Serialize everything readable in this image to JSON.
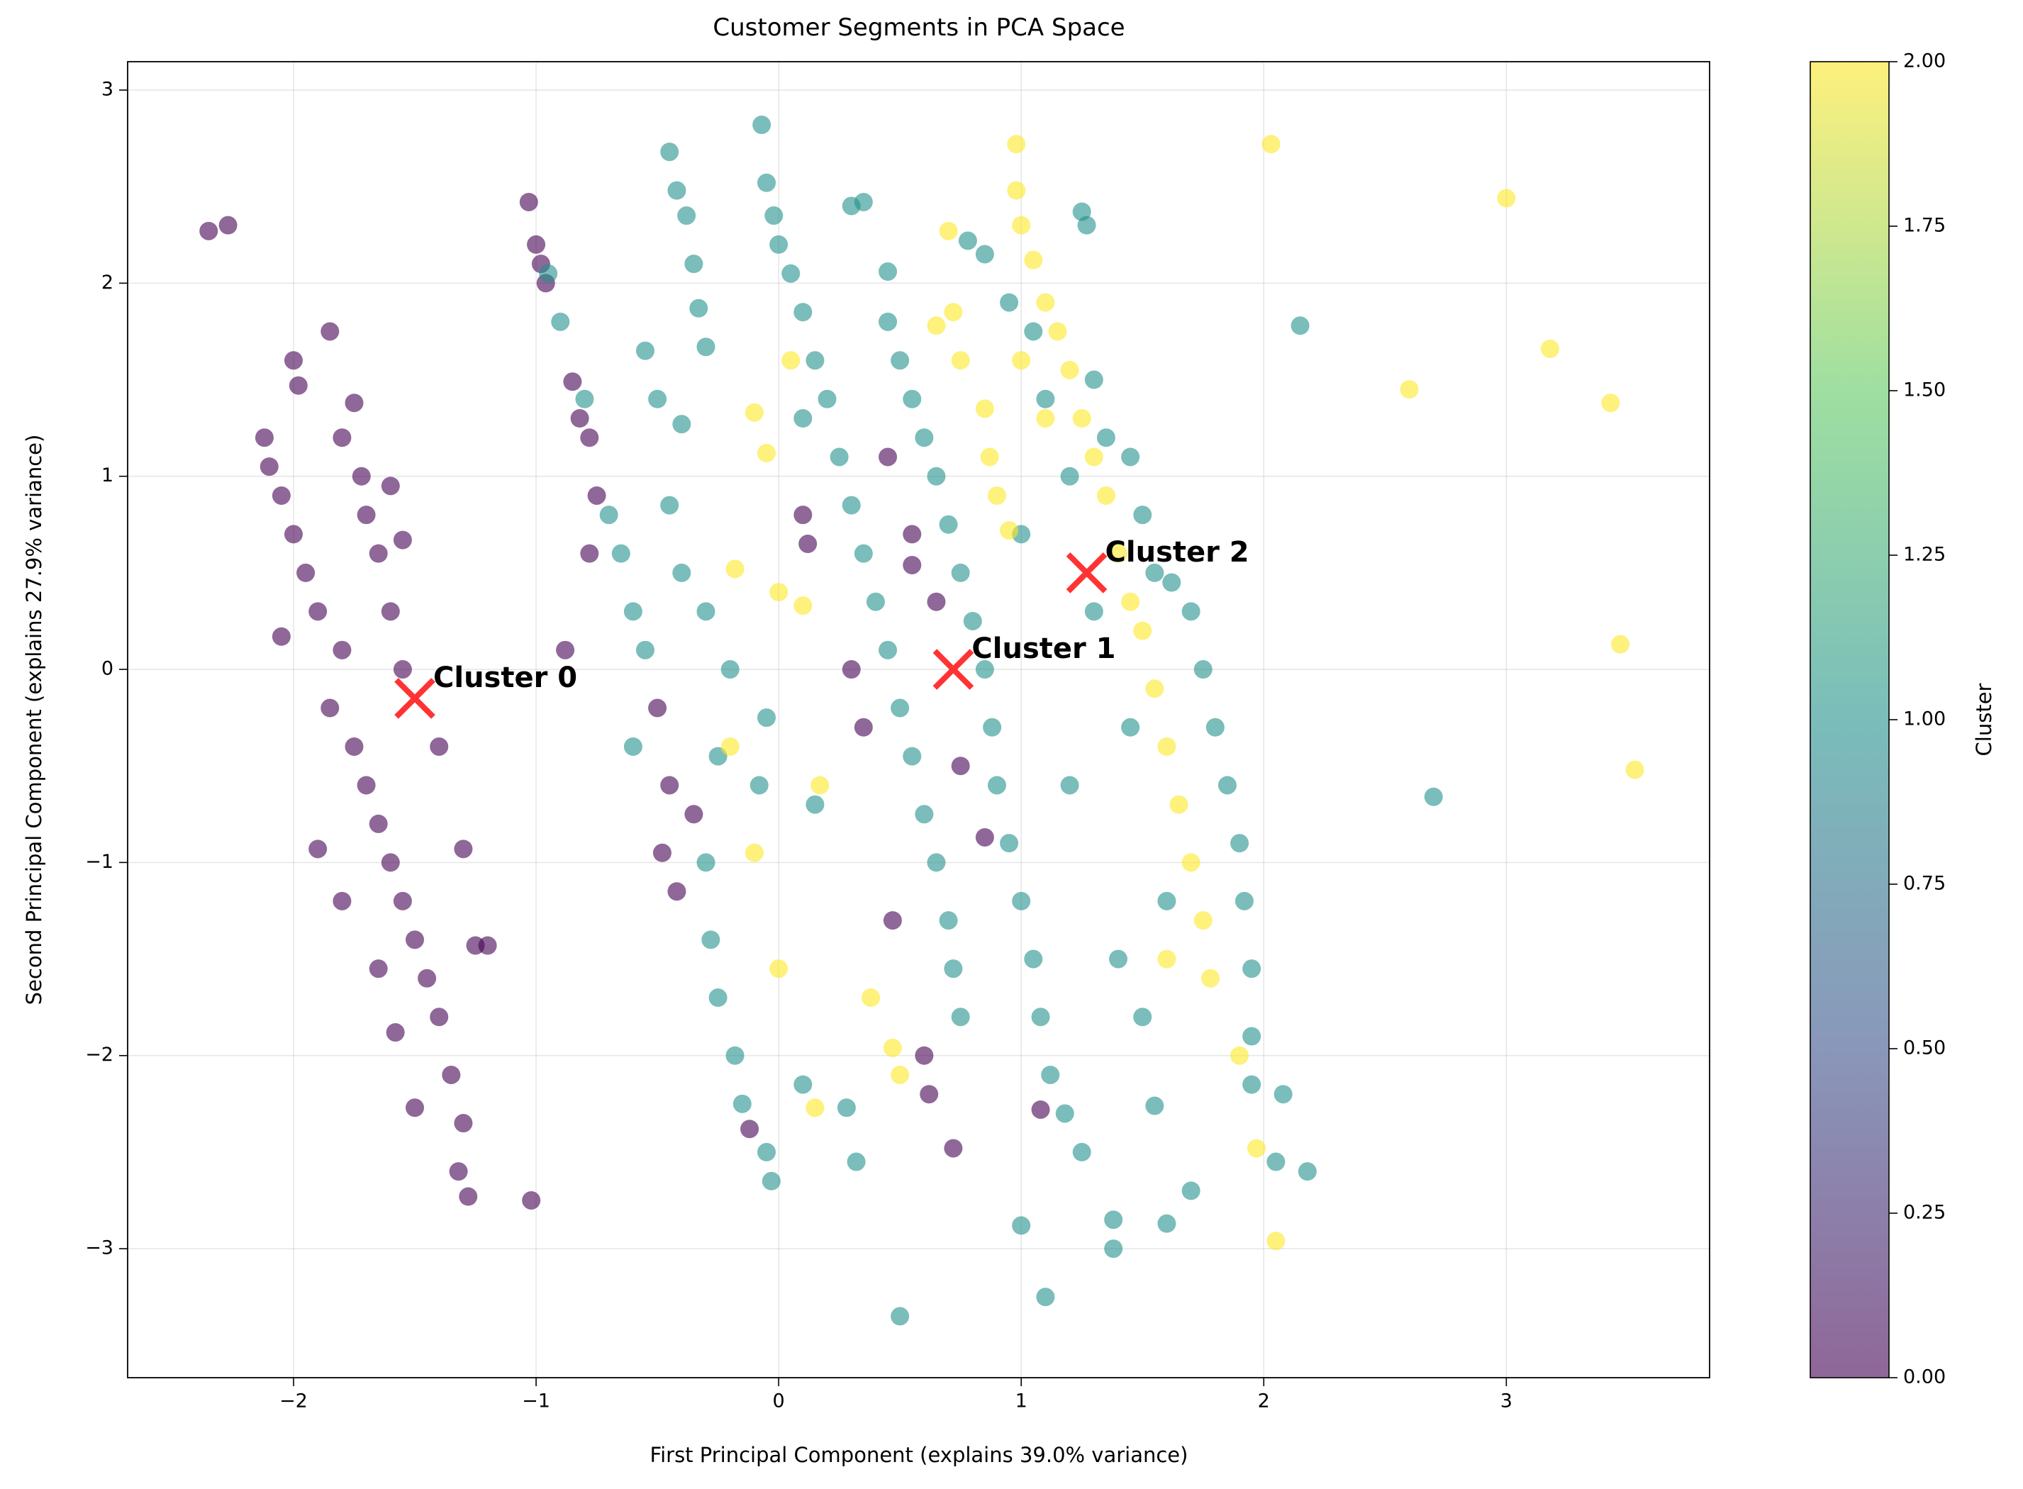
{
  "chart_data": {
    "type": "scatter",
    "title": "Customer Segments in PCA Space",
    "x_label": "First Principal Component (explains 39.0% variance)",
    "y_label": "Second Principal Component (explains 27.9% variance)",
    "xlim": [
      -2.684,
      3.838
    ],
    "ylim": [
      -3.668,
      3.147
    ],
    "xticks": [
      {
        "value": -2,
        "label": "−2"
      },
      {
        "value": -1,
        "label": "−1"
      },
      0,
      1,
      2,
      3
    ],
    "yticks": [
      {
        "value": -3,
        "label": "−3"
      },
      {
        "value": -2,
        "label": "−2"
      },
      {
        "value": -1,
        "label": "−1"
      },
      0,
      1,
      2,
      3
    ],
    "grid": true,
    "alpha": 0.6,
    "series": [
      {
        "color": "#440154",
        "x": [
          -2.35,
          -2.27,
          -2.12,
          -2.1,
          -2.05,
          -2.0,
          -1.98,
          -2.0,
          -1.95,
          -1.9,
          -2.05,
          -1.85,
          -1.8,
          -1.75,
          -1.72,
          -1.7,
          -1.65,
          -1.6,
          -1.55,
          -1.8,
          -1.85,
          -1.75,
          -1.7,
          -1.65,
          -1.6,
          -1.55,
          -1.5,
          -1.45,
          -1.4,
          -1.35,
          -1.3,
          -1.32,
          -1.28,
          -1.5,
          -1.25,
          -1.2,
          -1.3,
          -1.4,
          -1.9,
          -1.8,
          -1.58,
          -1.65,
          -1.55,
          -1.6,
          -1.02,
          -1.03,
          -1.0,
          -0.98,
          -0.96,
          -0.85,
          -0.82,
          -0.78,
          -0.75,
          -0.78,
          -0.88,
          -0.5,
          -0.48,
          -0.45,
          -0.35,
          -0.42,
          0.1,
          0.12,
          0.3,
          0.35,
          0.45,
          0.47,
          0.6,
          0.62,
          0.72,
          0.65,
          0.55,
          0.75,
          0.85,
          1.08,
          0.55,
          -0.12
        ],
        "y": [
          2.27,
          2.3,
          1.2,
          1.05,
          0.9,
          1.6,
          1.47,
          0.7,
          0.5,
          0.3,
          0.17,
          1.75,
          1.2,
          1.38,
          1.0,
          0.8,
          0.6,
          0.3,
          0.0,
          0.1,
          -0.2,
          -0.4,
          -0.6,
          -0.8,
          -1.0,
          -1.2,
          -1.4,
          -1.6,
          -1.8,
          -2.1,
          -2.35,
          -2.6,
          -2.73,
          -2.27,
          -1.43,
          -1.43,
          -0.93,
          -0.4,
          -0.93,
          -1.2,
          -1.88,
          -1.55,
          0.67,
          0.95,
          -2.75,
          2.42,
          2.2,
          2.1,
          2.0,
          1.49,
          1.3,
          1.2,
          0.9,
          0.6,
          0.1,
          -0.2,
          -0.95,
          -0.6,
          -0.75,
          -1.15,
          0.8,
          0.65,
          0.0,
          -0.3,
          1.1,
          -1.3,
          -2.0,
          -2.2,
          -2.48,
          0.35,
          0.54,
          -0.5,
          -0.87,
          -2.28,
          0.7,
          -2.38
        ]
      },
      {
        "color": "#21918c",
        "x": [
          -0.95,
          -0.9,
          -0.8,
          -0.7,
          -0.65,
          -0.6,
          -0.55,
          -0.6,
          -0.45,
          -0.42,
          -0.38,
          -0.35,
          -0.33,
          -0.3,
          -0.55,
          -0.5,
          -0.4,
          -0.45,
          -0.4,
          -0.3,
          -0.2,
          -0.25,
          -0.3,
          -0.28,
          -0.25,
          -0.18,
          -0.15,
          -0.05,
          -0.03,
          -0.07,
          -0.05,
          -0.02,
          0.0,
          0.05,
          0.1,
          0.15,
          0.2,
          0.25,
          0.3,
          0.35,
          0.4,
          0.45,
          0.5,
          0.55,
          0.6,
          0.65,
          0.7,
          0.72,
          0.75,
          0.3,
          0.35,
          0.45,
          0.45,
          0.5,
          0.55,
          0.6,
          0.65,
          0.7,
          0.75,
          0.8,
          0.85,
          0.88,
          0.9,
          0.95,
          1.0,
          1.05,
          1.08,
          1.12,
          1.18,
          1.25,
          1.0,
          1.1,
          0.5,
          1.38,
          1.38,
          1.6,
          1.7,
          1.55,
          0.1,
          0.28,
          0.32,
          0.78,
          0.85,
          0.95,
          1.05,
          1.1,
          1.2,
          1.25,
          1.27,
          1.3,
          1.35,
          1.45,
          1.5,
          1.55,
          1.62,
          1.7,
          1.75,
          1.8,
          1.85,
          1.9,
          1.92,
          1.95,
          1.95,
          1.95,
          2.05,
          2.08,
          2.18,
          2.15,
          2.7,
          1.4,
          1.5,
          1.6,
          1.0,
          0.1,
          -0.05,
          -0.08,
          0.15,
          1.3,
          1.45,
          1.2
        ],
        "y": [
          2.05,
          1.8,
          1.4,
          0.8,
          0.6,
          0.3,
          0.1,
          -0.4,
          2.68,
          2.48,
          2.35,
          2.1,
          1.87,
          1.67,
          1.65,
          1.4,
          1.27,
          0.85,
          0.5,
          0.3,
          0.0,
          -0.45,
          -1.0,
          -1.4,
          -1.7,
          -2.0,
          -2.25,
          -2.5,
          -2.65,
          2.82,
          2.52,
          2.35,
          2.2,
          2.05,
          1.85,
          1.6,
          1.4,
          1.1,
          0.85,
          0.6,
          0.35,
          0.1,
          -0.2,
          -0.45,
          -0.75,
          -1.0,
          -1.3,
          -1.55,
          -1.8,
          2.4,
          2.42,
          2.06,
          1.8,
          1.6,
          1.4,
          1.2,
          1.0,
          0.75,
          0.5,
          0.25,
          0.0,
          -0.3,
          -0.6,
          -0.9,
          -1.2,
          -1.5,
          -1.8,
          -2.1,
          -2.3,
          -2.5,
          -2.88,
          -3.25,
          -3.35,
          -2.85,
          -3.0,
          -2.87,
          -2.7,
          -2.26,
          -2.15,
          -2.27,
          -2.55,
          2.22,
          2.15,
          1.9,
          1.75,
          1.4,
          1.0,
          2.37,
          2.3,
          1.5,
          1.2,
          1.1,
          0.8,
          0.5,
          0.45,
          0.3,
          0.0,
          -0.3,
          -0.6,
          -0.9,
          -1.2,
          -1.55,
          -1.9,
          -2.15,
          -2.55,
          -2.2,
          -2.6,
          1.78,
          -0.66,
          -1.5,
          -1.8,
          -1.2,
          0.7,
          1.3,
          -0.25,
          -0.6,
          -0.7,
          0.3,
          -0.3,
          -0.6
        ]
      },
      {
        "color": "#fde725",
        "x": [
          0.98,
          0.98,
          1.0,
          1.05,
          1.1,
          1.15,
          1.2,
          1.25,
          1.3,
          1.35,
          1.4,
          1.45,
          1.5,
          1.55,
          1.6,
          1.65,
          1.7,
          1.75,
          1.78,
          1.9,
          0.7,
          0.72,
          0.65,
          0.75,
          0.85,
          0.87,
          0.9,
          0.95,
          1.0,
          1.1,
          2.03,
          3.0,
          3.18,
          2.6,
          3.43,
          3.47,
          3.53,
          1.97,
          2.05,
          0.38,
          0.47,
          0.5,
          0.15,
          0.0,
          0.05,
          -0.1,
          -0.05,
          0.1,
          0.17,
          -0.1,
          0.0,
          -0.2,
          -0.18,
          1.6
        ],
        "y": [
          2.72,
          2.48,
          2.3,
          2.12,
          1.9,
          1.75,
          1.55,
          1.3,
          1.1,
          0.9,
          0.6,
          0.35,
          0.2,
          -0.1,
          -0.4,
          -0.7,
          -1.0,
          -1.3,
          -1.6,
          -2.0,
          2.27,
          1.85,
          1.78,
          1.6,
          1.35,
          1.1,
          0.9,
          0.72,
          1.6,
          1.3,
          2.72,
          2.44,
          1.66,
          1.45,
          1.38,
          0.13,
          -0.52,
          -2.48,
          -2.96,
          -1.7,
          -1.96,
          -2.1,
          -2.27,
          0.4,
          1.6,
          1.33,
          1.12,
          0.33,
          -0.6,
          -0.95,
          -1.55,
          -0.4,
          0.52,
          -1.5
        ]
      }
    ],
    "centroids": {
      "color": "red",
      "x": [
        -1.5,
        0.72,
        1.27
      ],
      "y": [
        -0.15,
        0.0,
        0.5
      ]
    },
    "annotations": [
      "Cluster 0",
      "Cluster 1",
      "Cluster 2"
    ],
    "colorbar": {
      "label": "Cluster",
      "lim": [
        0,
        2
      ],
      "colormap": [
        "#440154",
        "#3b528b",
        "#21918c",
        "#5ec962",
        "#fde725"
      ],
      "ticks": [
        {
          "value": 0,
          "label": "0.00"
        },
        {
          "value": 0.25,
          "label": "0.25"
        },
        {
          "value": 0.5,
          "label": "0.50"
        },
        {
          "value": 0.75,
          "label": "0.75"
        },
        {
          "value": 1,
          "label": "1.00"
        },
        {
          "value": 1.25,
          "label": "1.25"
        },
        {
          "value": 1.5,
          "label": "1.50"
        },
        {
          "value": 1.75,
          "label": "1.75"
        },
        {
          "value": 2,
          "label": "2.00"
        }
      ]
    }
  }
}
